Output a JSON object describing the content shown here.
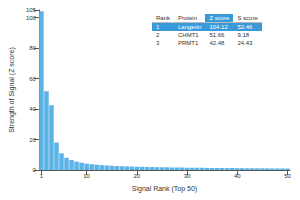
{
  "chart_data": {
    "type": "bar",
    "color": "#5cb3e6",
    "x_label": "Signal Rank (Top 50)",
    "y_label": "Strength of Signal (Z score)",
    "categories": [
      1,
      null,
      null,
      null,
      null,
      null,
      null,
      null,
      null,
      10,
      null,
      null,
      null,
      null,
      null,
      null,
      null,
      null,
      null,
      20,
      null,
      null,
      null,
      null,
      null,
      null,
      null,
      null,
      null,
      30,
      null,
      null,
      null,
      null,
      null,
      null,
      null,
      null,
      null,
      40,
      null,
      null,
      null,
      null,
      null,
      null,
      null,
      null,
      null,
      50
    ],
    "values": [
      104.12,
      51.66,
      42.48,
      18.05,
      11,
      8,
      6.5,
      5.5,
      4.8,
      4.2,
      3.8,
      3.5,
      3.2,
      3,
      2.8,
      2.6,
      2.5,
      2.4,
      2.3,
      2.2,
      2.1,
      2,
      1.9,
      1.85,
      1.8,
      1.75,
      1.7,
      1.65,
      1.6,
      1.55,
      1.5,
      1.45,
      1.4,
      1.38,
      1.35,
      1.32,
      1.3,
      1.27,
      1.25,
      1.22,
      1.2,
      1.18,
      1.15,
      1.12,
      1.1,
      1.08,
      1.05,
      1.02,
      1,
      0.98
    ],
    "ylim": [
      0,
      105
    ],
    "yticks": [
      0,
      20,
      40,
      60,
      80,
      100
    ],
    "grid": false,
    "table": {
      "header": [
        "Rank",
        "Protein",
        "Z score",
        "S score"
      ],
      "highlight_column": "Z score",
      "highlight_row": 1,
      "rows": [
        [
          1,
          "Langerin",
          104.12,
          52.46
        ],
        [
          2,
          "CHMT1",
          51.66,
          9.18
        ],
        [
          3,
          "PRMT1",
          42.48,
          24.43
        ]
      ]
    }
  }
}
